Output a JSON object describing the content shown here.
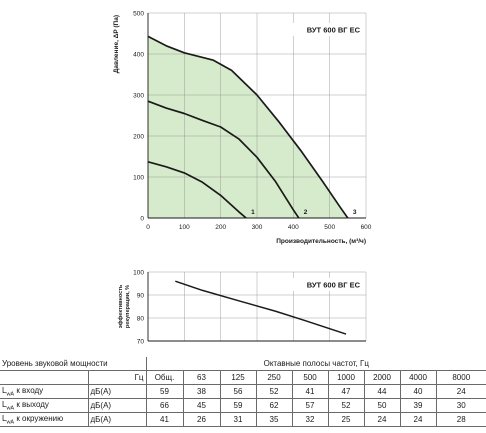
{
  "chart_data": [
    {
      "type": "line",
      "title": "ВУТ 600 ВГ ЕС",
      "xlabel": "Производительность, (м³/ч)",
      "ylabel": "Давление, ΔP (Па)",
      "xlim": [
        0,
        600
      ],
      "ylim": [
        0,
        500
      ],
      "x_ticks": [
        "0",
        "100",
        "200",
        "300",
        "400",
        "500",
        "600"
      ],
      "y_ticks": [
        "0",
        "100",
        "200",
        "300",
        "400",
        "500"
      ],
      "grid": true,
      "working_area": [
        [
          0,
          443
        ],
        [
          50,
          420
        ],
        [
          100,
          403
        ],
        [
          180,
          385
        ],
        [
          230,
          360
        ],
        [
          300,
          300
        ],
        [
          360,
          235
        ],
        [
          420,
          165
        ],
        [
          480,
          90
        ],
        [
          530,
          25
        ],
        [
          550,
          0
        ],
        [
          0,
          0
        ]
      ],
      "series": [
        {
          "name": "1",
          "points": [
            [
              0,
              137
            ],
            [
              50,
              125
            ],
            [
              100,
              110
            ],
            [
              150,
              87
            ],
            [
              200,
              55
            ],
            [
              250,
              15
            ],
            [
              270,
              0
            ]
          ]
        },
        {
          "name": "2",
          "points": [
            [
              0,
              285
            ],
            [
              50,
              268
            ],
            [
              100,
              255
            ],
            [
              150,
              238
            ],
            [
              200,
              222
            ],
            [
              250,
              193
            ],
            [
              300,
              148
            ],
            [
              350,
              90
            ],
            [
              400,
              20
            ],
            [
              415,
              0
            ]
          ]
        },
        {
          "name": "3",
          "points": [
            [
              0,
              443
            ],
            [
              50,
              420
            ],
            [
              100,
              403
            ],
            [
              180,
              385
            ],
            [
              230,
              360
            ],
            [
              300,
              300
            ],
            [
              360,
              235
            ],
            [
              420,
              165
            ],
            [
              480,
              90
            ],
            [
              530,
              25
            ],
            [
              550,
              0
            ]
          ]
        }
      ]
    },
    {
      "type": "line",
      "title": "ВУТ 600 ВГ ЕС",
      "ylabel_lines": [
        "эффективность",
        "рекуперации, %"
      ],
      "xlim": [
        0,
        600
      ],
      "ylim": [
        70,
        100
      ],
      "y_ticks": [
        "70",
        "80",
        "90",
        "100"
      ],
      "grid": true,
      "series": [
        {
          "name": "",
          "points": [
            [
              75,
              96
            ],
            [
              150,
              92
            ],
            [
              250,
              87.5
            ],
            [
              350,
              83
            ],
            [
              430,
              79
            ],
            [
              545,
              73
            ]
          ]
        }
      ]
    }
  ],
  "sound_table": {
    "title": "Уровень звуковой мощности",
    "band_header": "Октавные полосы частот, Гц",
    "unit_header": "Гц",
    "columns": [
      "Общ.",
      "63",
      "125",
      "250",
      "500",
      "1000",
      "2000",
      "4000",
      "8000"
    ],
    "rows": [
      {
        "label": "к входу",
        "unit": "дБ(А)",
        "values": [
          "59",
          "38",
          "56",
          "52",
          "41",
          "47",
          "44",
          "40",
          "24"
        ]
      },
      {
        "label": "к выходу",
        "unit": "дБ(А)",
        "values": [
          "66",
          "45",
          "59",
          "62",
          "57",
          "52",
          "50",
          "39",
          "30"
        ]
      },
      {
        "label": "к окружению",
        "unit": "дБ(А)",
        "values": [
          "41",
          "26",
          "31",
          "35",
          "32",
          "25",
          "24",
          "24",
          "28"
        ]
      }
    ]
  },
  "colors": {
    "fill": "#d6ebcc",
    "line": "#1a1a1a",
    "grid": "#8c8c8c",
    "axis": "#1a1a1a"
  }
}
